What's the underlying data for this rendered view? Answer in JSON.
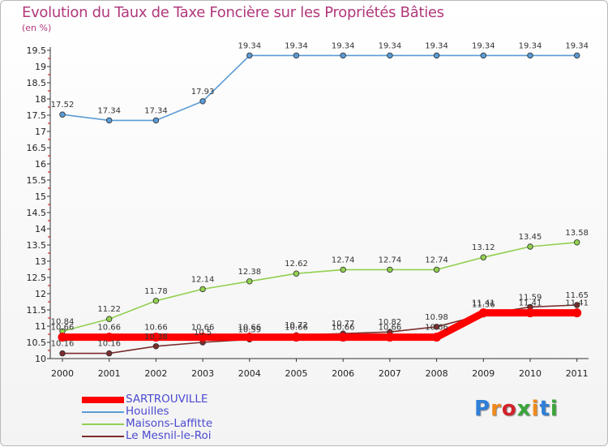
{
  "header": {
    "title": "Evolution du Taux de Taxe Foncière sur les Propriétés Bâties",
    "unit": "(en %)"
  },
  "chart_data": {
    "type": "line",
    "x": [
      "2000",
      "2001",
      "2002",
      "2003",
      "2004",
      "2005",
      "2006",
      "2007",
      "2008",
      "2009",
      "2010",
      "2011"
    ],
    "ylim": [
      10,
      19.5
    ],
    "yticks": [
      "10",
      "10.5",
      "11",
      "11.5",
      "12",
      "12.5",
      "13",
      "13.5",
      "14",
      "14.5",
      "15",
      "15.5",
      "16",
      "16.5",
      "17",
      "17.5",
      "18",
      "18.5",
      "19",
      "19.5"
    ],
    "grid": false,
    "legend_position": "bottom-left",
    "series": [
      {
        "name": "SARTROUVILLE",
        "color": "#ff0000",
        "values": [
          10.66,
          10.66,
          10.66,
          10.66,
          10.66,
          10.66,
          10.66,
          10.66,
          10.66,
          11.41,
          11.41,
          11.41
        ],
        "labels": [
          "10.66",
          "10.66",
          "10.66",
          "10.66",
          "10.66",
          "10.66",
          "10.66",
          "10.66",
          "10.66",
          "11.41",
          "11.41",
          "11.41"
        ]
      },
      {
        "name": "Houilles",
        "color": "#5b9bd5",
        "values": [
          17.52,
          17.34,
          17.34,
          17.93,
          19.34,
          19.34,
          19.34,
          19.34,
          19.34,
          19.34,
          19.34,
          19.34
        ],
        "labels": [
          "17.52",
          "17.34",
          "17.34",
          "17.93",
          "19.34",
          "19.34",
          "19.34",
          "19.34",
          "19.34",
          "19.34",
          "19.34",
          "19.34"
        ]
      },
      {
        "name": "Maisons-Laffitte",
        "color": "#92d050",
        "values": [
          10.84,
          11.22,
          11.78,
          12.14,
          12.38,
          12.62,
          12.74,
          12.74,
          12.74,
          13.12,
          13.45,
          13.58
        ],
        "labels": [
          "10.84",
          "11.22",
          "11.78",
          "12.14",
          "12.38",
          "12.62",
          "12.74",
          "12.74",
          "12.74",
          "13.12",
          "13.45",
          "13.58"
        ]
      },
      {
        "name": "Le Mesnil-le-Roi",
        "color": "#7b2d2d",
        "values": [
          10.16,
          10.16,
          10.38,
          10.5,
          10.59,
          10.72,
          10.77,
          10.82,
          10.98,
          11.36,
          11.59,
          11.65
        ],
        "labels": [
          "10.16",
          "10.16",
          "10.38",
          "10.5",
          "10.59",
          "10.72",
          "10.77",
          "10.82",
          "10.98",
          "11.36",
          "11.59",
          "11.65"
        ]
      }
    ]
  },
  "legend": {
    "items": [
      {
        "label": "SARTROUVILLE",
        "color": "#ff0000"
      },
      {
        "label": "Houilles",
        "color": "#5b9bd5"
      },
      {
        "label": "Maisons-Laffitte",
        "color": "#92d050"
      },
      {
        "label": "Le Mesnil-le-Roi",
        "color": "#7b2d2d"
      }
    ]
  },
  "logo": {
    "text": "Proxiti",
    "letter_colors": [
      "#2f7fd8",
      "#f08a1c",
      "#d2232a",
      "#3aa63a",
      "#f08a1c",
      "#2f7fd8",
      "#3aa63a"
    ]
  }
}
